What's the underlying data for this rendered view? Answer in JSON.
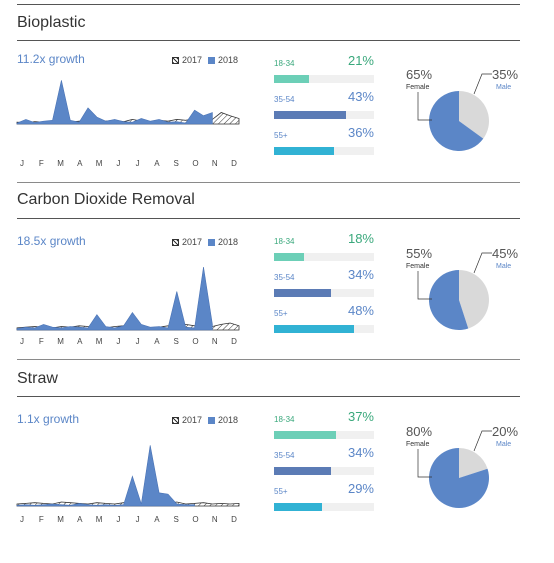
{
  "legend": {
    "y2017": "2017",
    "y2018": "2018"
  },
  "colors": {
    "series_2018": "#5b86c7",
    "series_2017": "#333333",
    "female": "#5b86c7",
    "male": "#d9d9d9",
    "age_18_34": "#6ccfb7",
    "age_35_54": "#5b7bb5",
    "age_55": "#31b2d4",
    "green_text": "#3aa87c",
    "blue_text": "#5b86c7"
  },
  "months": [
    "J",
    "F",
    "M",
    "A",
    "M",
    "J",
    "J",
    "A",
    "S",
    "O",
    "N",
    "D"
  ],
  "sections": [
    {
      "title": "Bioplastic",
      "growth": "11.2x growth",
      "ages": [
        {
          "label": "18-34",
          "pct": "21%",
          "value": 21,
          "color": "#6ccfb7",
          "label_color": "#3aa87c"
        },
        {
          "label": "35-54",
          "pct": "43%",
          "value": 43,
          "color": "#5b7bb5",
          "label_color": "#5b86c7"
        },
        {
          "label": "55+",
          "pct": "36%",
          "value": 36,
          "color": "#31b2d4",
          "label_color": "#5b86c7"
        }
      ],
      "gender": {
        "female_pct": "65%",
        "female_label": "Female",
        "male_pct": "35%",
        "male_label": "Male",
        "female_value": 65
      }
    },
    {
      "title": "Carbon Dioxide Removal",
      "growth": "18.5x growth",
      "ages": [
        {
          "label": "18-34",
          "pct": "18%",
          "value": 18,
          "color": "#6ccfb7",
          "label_color": "#3aa87c"
        },
        {
          "label": "35-54",
          "pct": "34%",
          "value": 34,
          "color": "#5b7bb5",
          "label_color": "#5b86c7"
        },
        {
          "label": "55+",
          "pct": "48%",
          "value": 48,
          "color": "#31b2d4",
          "label_color": "#5b86c7"
        }
      ],
      "gender": {
        "female_pct": "55%",
        "female_label": "Female",
        "male_pct": "45%",
        "male_label": "Male",
        "female_value": 55
      }
    },
    {
      "title": "Straw",
      "growth": "1.1x growth",
      "ages": [
        {
          "label": "18-34",
          "pct": "37%",
          "value": 37,
          "color": "#6ccfb7",
          "label_color": "#3aa87c"
        },
        {
          "label": "35-54",
          "pct": "34%",
          "value": 34,
          "color": "#5b7bb5",
          "label_color": "#5b86c7"
        },
        {
          "label": "55+",
          "pct": "29%",
          "value": 29,
          "color": "#31b2d4",
          "label_color": "#5b86c7"
        }
      ],
      "gender": {
        "female_pct": "80%",
        "female_label": "Female",
        "male_pct": "20%",
        "male_label": "Male",
        "female_value": 80
      }
    }
  ],
  "chart_data": [
    {
      "type": "area",
      "title": "Bioplastic",
      "x": [
        0,
        0.04,
        0.08,
        0.12,
        0.16,
        0.2,
        0.24,
        0.28,
        0.32,
        0.36,
        0.4,
        0.44,
        0.48,
        0.52,
        0.56,
        0.6,
        0.64,
        0.68,
        0.72,
        0.76,
        0.8,
        0.84,
        0.88,
        0.92,
        0.96,
        1
      ],
      "series": [
        {
          "name": "2018",
          "values": [
            2,
            10,
            3,
            6,
            8,
            95,
            8,
            4,
            35,
            15,
            6,
            10,
            5,
            4,
            12,
            6,
            10,
            4,
            5,
            2,
            30,
            18,
            25,
            null,
            null,
            null
          ]
        },
        {
          "name": "2017",
          "values": [
            4,
            3,
            5,
            4,
            6,
            5,
            4,
            6,
            5,
            4,
            6,
            8,
            5,
            10,
            6,
            5,
            8,
            6,
            10,
            8,
            12,
            6,
            10,
            25,
            18,
            12
          ]
        }
      ],
      "ylim": [
        0,
        100
      ]
    },
    {
      "type": "area",
      "title": "Carbon Dioxide Removal",
      "x": [
        0,
        0.04,
        0.08,
        0.12,
        0.16,
        0.2,
        0.24,
        0.28,
        0.32,
        0.36,
        0.4,
        0.44,
        0.48,
        0.52,
        0.56,
        0.6,
        0.64,
        0.68,
        0.72,
        0.76,
        0.8,
        0.84,
        0.88,
        0.92,
        0.96,
        1
      ],
      "series": [
        {
          "name": "2018",
          "values": [
            2,
            4,
            3,
            8,
            4,
            3,
            5,
            4,
            3,
            22,
            5,
            3,
            6,
            25,
            8,
            4,
            5,
            3,
            55,
            4,
            3,
            90,
            8,
            null,
            null,
            null
          ]
        },
        {
          "name": "2017",
          "values": [
            3,
            4,
            5,
            4,
            3,
            5,
            4,
            6,
            5,
            4,
            3,
            5,
            6,
            4,
            5,
            3,
            4,
            6,
            5,
            8,
            6,
            4,
            5,
            8,
            10,
            6
          ]
        }
      ],
      "ylim": [
        0,
        100
      ]
    },
    {
      "type": "area",
      "title": "Straw",
      "x": [
        0,
        0.04,
        0.08,
        0.12,
        0.16,
        0.2,
        0.24,
        0.28,
        0.32,
        0.36,
        0.4,
        0.44,
        0.48,
        0.52,
        0.56,
        0.6,
        0.64,
        0.68,
        0.72,
        0.76,
        0.8,
        0.84,
        0.88,
        0.92,
        0.96,
        1
      ],
      "series": [
        {
          "name": "2018",
          "values": [
            1,
            2,
            1,
            2,
            3,
            2,
            1,
            4,
            2,
            1,
            2,
            1,
            2,
            45,
            3,
            92,
            20,
            18,
            3,
            2,
            2,
            null,
            null,
            null,
            null,
            null
          ]
        },
        {
          "name": "2017",
          "values": [
            3,
            4,
            5,
            4,
            3,
            6,
            5,
            4,
            3,
            5,
            4,
            3,
            5,
            6,
            4,
            8,
            5,
            4,
            6,
            3,
            4,
            5,
            3,
            4,
            3,
            4
          ]
        }
      ],
      "ylim": [
        0,
        100
      ]
    }
  ]
}
